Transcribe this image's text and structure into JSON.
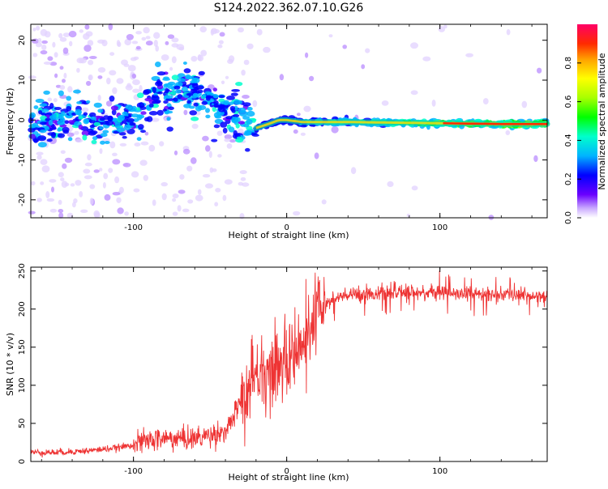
{
  "title": "S124.2022.362.07.10.G26",
  "chart_data": [
    {
      "type": "heatmap",
      "xlabel": "Height of straight line (km)",
      "ylabel": "Frequency (Hz)",
      "xlim": [
        -167,
        170
      ],
      "ylim": [
        -24.5,
        24
      ],
      "xticks": [
        -100,
        0,
        100
      ],
      "yticks": [
        -20,
        -10,
        0,
        10,
        20
      ],
      "colorbar": {
        "label": "Normalized spectral amplitude",
        "range": [
          0,
          1
        ],
        "ticks": [
          0.0,
          0.2,
          0.4,
          0.6,
          0.8
        ],
        "colormap": "hsv-rainbow"
      },
      "ridge": {
        "description_points_x": [
          -167,
          -140,
          -120,
          -105,
          -95,
          -85,
          -75,
          -65,
          -55,
          -45,
          -35,
          -28,
          -20,
          -12,
          -5,
          0,
          10,
          20,
          40,
          60,
          80,
          100,
          120,
          140,
          170
        ],
        "description_points_y": [
          -2,
          1,
          -1,
          0,
          3,
          7,
          6,
          8,
          6,
          3,
          2,
          -1,
          -2,
          -1,
          0,
          0,
          -0.5,
          -0.5,
          -0.5,
          -0.6,
          -0.7,
          -0.8,
          -0.9,
          -1.0,
          -1.0
        ]
      }
    },
    {
      "type": "line",
      "xlabel": "Height of straight line (km)",
      "ylabel": "SNR (10 * v/v)",
      "xlim": [
        -167,
        170
      ],
      "ylim": [
        0,
        255
      ],
      "xticks": [
        -100,
        0,
        100
      ],
      "yticks": [
        0,
        50,
        100,
        150,
        200,
        250
      ],
      "series_color": "#ee3333",
      "envelope_x": [
        -167,
        -150,
        -130,
        -110,
        -100,
        -90,
        -80,
        -70,
        -60,
        -50,
        -40,
        -35,
        -30,
        -25,
        -20,
        -15,
        -10,
        -5,
        0,
        5,
        10,
        15,
        20,
        25,
        30,
        40,
        50,
        60,
        80,
        100,
        120,
        140,
        170
      ],
      "envelope_y": [
        12,
        12,
        14,
        18,
        22,
        28,
        30,
        30,
        30,
        35,
        40,
        55,
        80,
        100,
        110,
        115,
        120,
        125,
        130,
        145,
        150,
        165,
        195,
        205,
        212,
        218,
        220,
        220,
        222,
        222,
        220,
        218,
        218
      ]
    }
  ]
}
